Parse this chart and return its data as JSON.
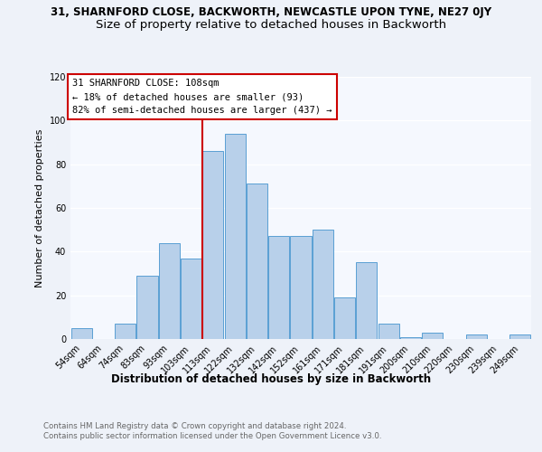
{
  "title": "31, SHARNFORD CLOSE, BACKWORTH, NEWCASTLE UPON TYNE, NE27 0JY",
  "subtitle": "Size of property relative to detached houses in Backworth",
  "xlabel": "Distribution of detached houses by size in Backworth",
  "ylabel": "Number of detached properties",
  "footer_line1": "Contains HM Land Registry data © Crown copyright and database right 2024.",
  "footer_line2": "Contains public sector information licensed under the Open Government Licence v3.0.",
  "bar_labels": [
    "54sqm",
    "64sqm",
    "74sqm",
    "83sqm",
    "93sqm",
    "103sqm",
    "113sqm",
    "122sqm",
    "132sqm",
    "142sqm",
    "152sqm",
    "161sqm",
    "171sqm",
    "181sqm",
    "191sqm",
    "200sqm",
    "210sqm",
    "220sqm",
    "230sqm",
    "239sqm",
    "249sqm"
  ],
  "bar_values": [
    5,
    0,
    7,
    29,
    44,
    37,
    86,
    94,
    71,
    47,
    47,
    50,
    19,
    35,
    7,
    1,
    3,
    0,
    2,
    0,
    2
  ],
  "bar_color": "#b8d0ea",
  "bar_edge_color": "#5a9fd4",
  "vline_x_index": 6,
  "vline_color": "#cc0000",
  "annotation_title": "31 SHARNFORD CLOSE: 108sqm",
  "annotation_line2": "← 18% of detached houses are smaller (93)",
  "annotation_line3": "82% of semi-detached houses are larger (437) →",
  "annotation_box_color": "#cc0000",
  "ylim": [
    0,
    120
  ],
  "yticks": [
    0,
    20,
    40,
    60,
    80,
    100,
    120
  ],
  "bg_color": "#eef2f9",
  "axes_bg_color": "#f5f8fe",
  "grid_color": "#ffffff",
  "title_fontsize": 8.5,
  "subtitle_fontsize": 9.5,
  "xlabel_fontsize": 8.5,
  "ylabel_fontsize": 8,
  "tick_fontsize": 7,
  "annotation_fontsize": 7.5,
  "footer_fontsize": 6.2,
  "footer_color": "#666666"
}
